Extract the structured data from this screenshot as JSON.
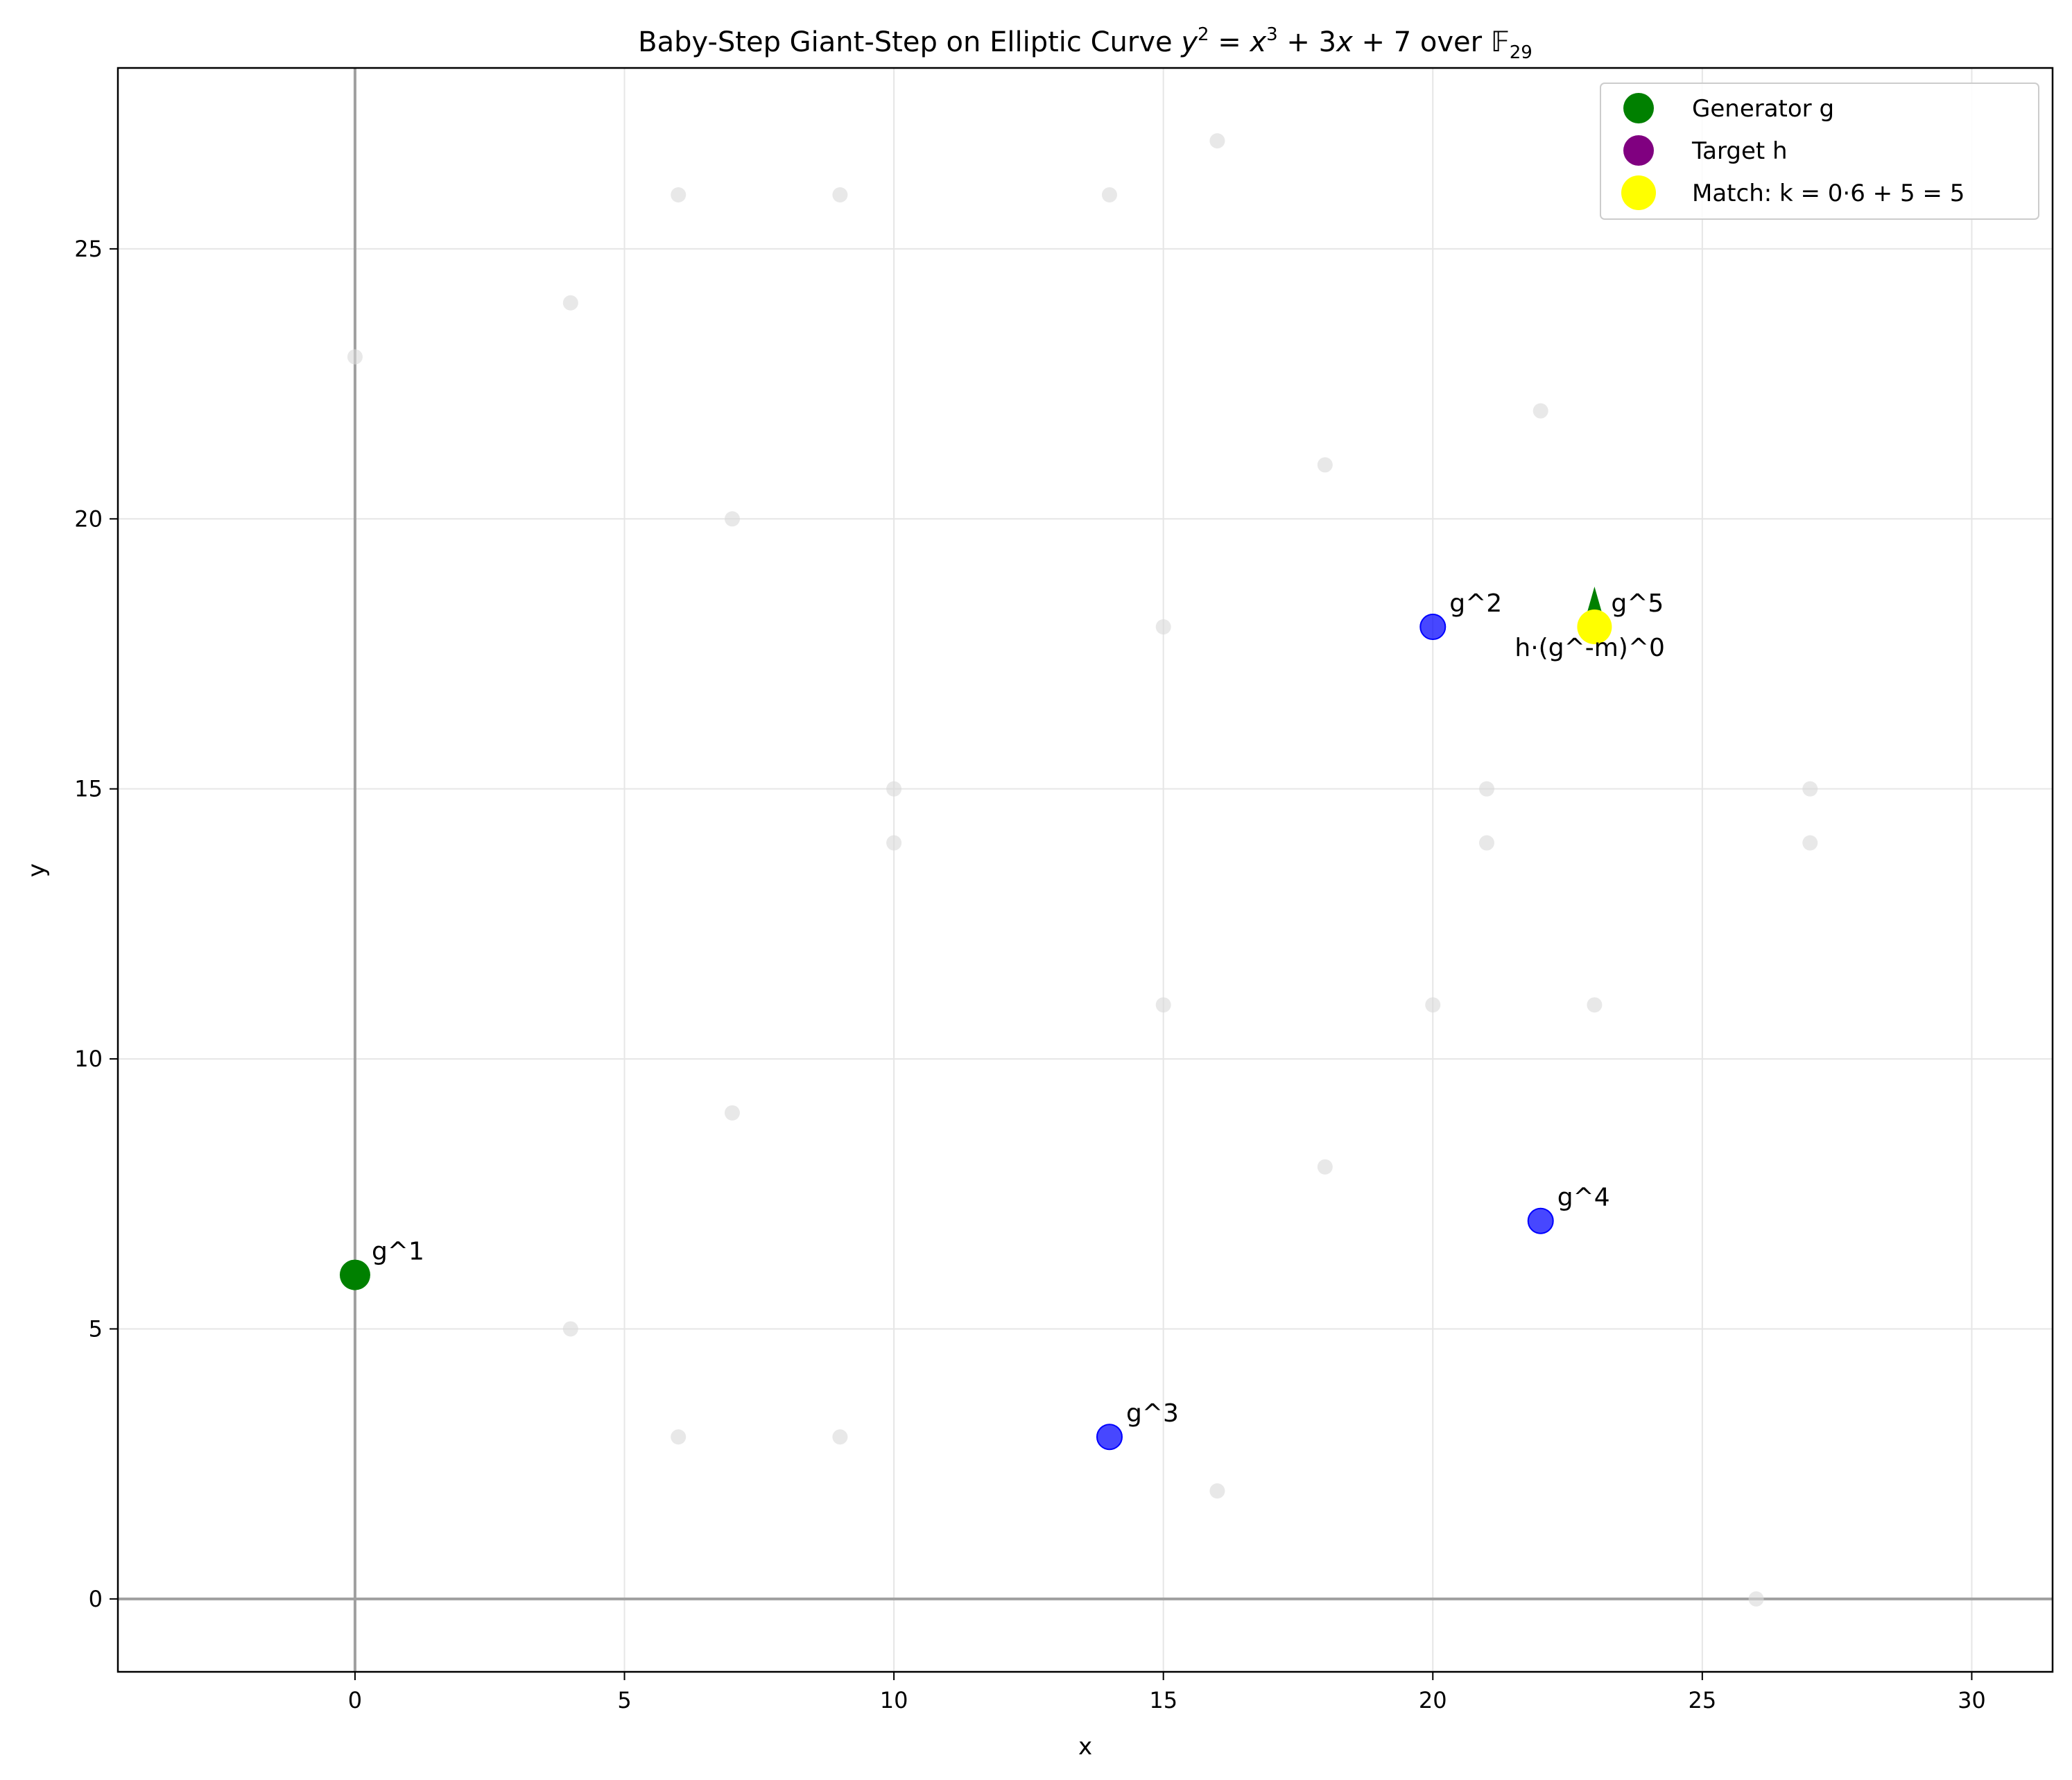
{
  "chart_data": {
    "type": "scatter",
    "title": {
      "prefix": "Baby-Step Giant-Step on Elliptic Curve ",
      "math_y": "y",
      "eq": " = ",
      "math_x": "x",
      "rest": " + 3",
      "math_x2": "x",
      "tail": " + 7 over ",
      "field": "𝔽",
      "field_sub": "29",
      "sup": "2",
      "sup3": "3"
    },
    "xlabel": "x",
    "ylabel": "y",
    "xlim": [
      -4.4,
      31.5
    ],
    "ylim": [
      -1.35,
      28.35
    ],
    "xticks": [
      0,
      5,
      10,
      15,
      20,
      25,
      30
    ],
    "yticks": [
      0,
      5,
      10,
      15,
      20,
      25
    ],
    "grid": true,
    "legend_position": "top-right",
    "curve_points": [
      [
        0,
        23
      ],
      [
        4,
        24
      ],
      [
        4,
        5
      ],
      [
        6,
        26
      ],
      [
        6,
        3
      ],
      [
        7,
        20
      ],
      [
        7,
        9
      ],
      [
        9,
        26
      ],
      [
        9,
        3
      ],
      [
        10,
        15
      ],
      [
        10,
        14
      ],
      [
        14,
        26
      ],
      [
        15,
        18
      ],
      [
        15,
        11
      ],
      [
        16,
        27
      ],
      [
        16,
        2
      ],
      [
        18,
        21
      ],
      [
        18,
        8
      ],
      [
        20,
        11
      ],
      [
        21,
        15
      ],
      [
        21,
        14
      ],
      [
        22,
        22
      ],
      [
        23,
        11
      ],
      [
        26,
        0
      ],
      [
        27,
        15
      ],
      [
        27,
        14
      ]
    ],
    "baby_steps": [
      {
        "x": 20,
        "y": 18,
        "label": "g^2"
      },
      {
        "x": 14,
        "y": 3,
        "label": "g^3"
      },
      {
        "x": 22,
        "y": 7,
        "label": "g^4"
      }
    ],
    "generator": {
      "x": 0,
      "y": 6,
      "label": "g^1"
    },
    "fifth": {
      "x": 23,
      "y": 18,
      "label": "g^5"
    },
    "match": {
      "x": 23,
      "y": 18,
      "label": "h·(g^-m)^0"
    },
    "legend": [
      {
        "label": "Generator g",
        "color": "#008000"
      },
      {
        "label": "Target h",
        "color": "#800080"
      },
      {
        "label": "Match: k = 0·6 + 5 = 5",
        "color": "#ffff00"
      }
    ],
    "colors": {
      "generator": "#008000",
      "baby": "#0000ff",
      "match": "#ffff00",
      "curve": "#d9d9d9",
      "target": "#800080"
    }
  }
}
